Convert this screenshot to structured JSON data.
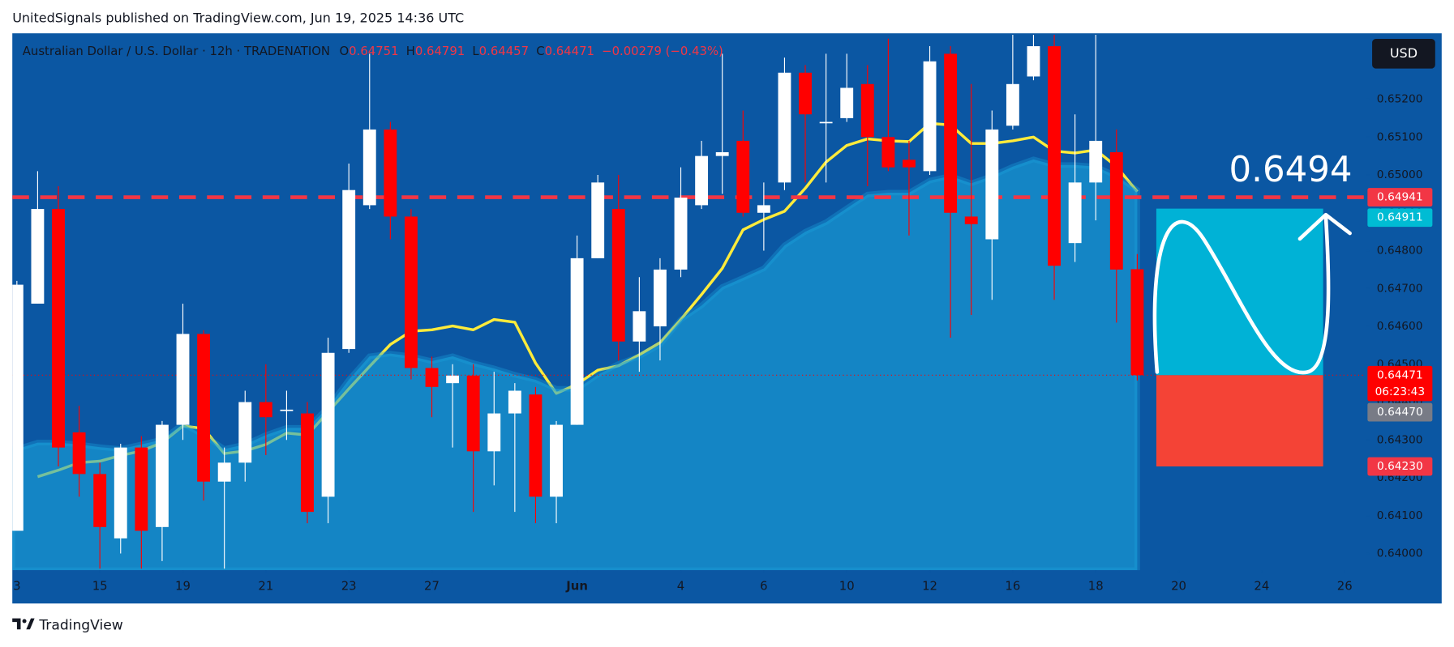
{
  "header": "UnitedSignals published on TradingView.com, Jun 19, 2025 14:36 UTC",
  "footer": "TradingView",
  "chart_data": {
    "type": "candlestick",
    "symbol": "Australian Dollar / U.S. Dollar · 12h · TRADENATION",
    "legend_keys": [
      "O",
      "H",
      "L",
      "C"
    ],
    "change": "−0.00279 (−0.43%)",
    "currency": "USD",
    "up_color": "#ffffff",
    "down_color": "#ff0000",
    "open": [
      0.6406,
      0.6466,
      0.6491,
      0.6432,
      0.6421,
      0.6404,
      0.6428,
      0.6407,
      0.6434,
      0.6458,
      0.6419,
      0.6424,
      0.644,
      0.6438,
      0.6437,
      0.6415,
      0.6454,
      0.6492,
      0.6512,
      0.6489,
      0.6449,
      0.6445,
      0.6447,
      0.6427,
      0.6437,
      0.6442,
      0.6415,
      0.6434,
      0.6478,
      0.6491,
      0.6456,
      0.646,
      0.6475,
      0.6492,
      0.6505,
      0.6509,
      0.649,
      0.6498,
      0.6527,
      0.6514,
      0.6515,
      0.6524,
      0.651,
      0.6504,
      0.6501,
      0.6532,
      0.6489,
      0.6483,
      0.6513,
      0.6526,
      0.6534,
      0.6482,
      0.6498,
      0.6506,
      0.64751
    ],
    "high": [
      0.6472,
      0.6501,
      0.6497,
      0.6439,
      0.6424,
      0.6429,
      0.6431,
      0.6435,
      0.6466,
      0.6459,
      0.6428,
      0.6443,
      0.645,
      0.6443,
      0.644,
      0.6457,
      0.6503,
      0.6532,
      0.6514,
      0.6491,
      0.6452,
      0.645,
      0.645,
      0.6448,
      0.6445,
      0.6444,
      0.6435,
      0.6484,
      0.65,
      0.65,
      0.6473,
      0.6478,
      0.6502,
      0.6509,
      0.6532,
      0.6517,
      0.6498,
      0.6531,
      0.6529,
      0.6532,
      0.6532,
      0.6529,
      0.6536,
      0.6509,
      0.6534,
      0.6534,
      0.6524,
      0.6517,
      0.6537,
      0.6537,
      0.6537,
      0.6516,
      0.6537,
      0.6512,
      0.64791
    ],
    "low": [
      0.6406,
      0.6466,
      0.6423,
      0.6415,
      0.6396,
      0.64,
      0.6396,
      0.6398,
      0.643,
      0.6414,
      0.6396,
      0.6419,
      0.6426,
      0.643,
      0.6408,
      0.6408,
      0.6453,
      0.6491,
      0.6483,
      0.6446,
      0.6436,
      0.6428,
      0.6411,
      0.6418,
      0.6411,
      0.6408,
      0.6408,
      0.6434,
      0.6478,
      0.6451,
      0.6448,
      0.6451,
      0.6473,
      0.6491,
      0.6495,
      0.6489,
      0.648,
      0.6496,
      0.6498,
      0.6498,
      0.6514,
      0.6497,
      0.6501,
      0.6484,
      0.65,
      0.6457,
      0.6463,
      0.6467,
      0.6512,
      0.6525,
      0.6467,
      0.6477,
      0.6488,
      0.6461,
      0.64457
    ],
    "close": [
      0.6471,
      0.6491,
      0.6428,
      0.6421,
      0.6407,
      0.6428,
      0.6406,
      0.6434,
      0.6458,
      0.6419,
      0.6424,
      0.644,
      0.6436,
      0.6438,
      0.6411,
      0.6453,
      0.6496,
      0.6512,
      0.6489,
      0.6449,
      0.6444,
      0.6447,
      0.6427,
      0.6437,
      0.6443,
      0.6415,
      0.6434,
      0.6478,
      0.6498,
      0.6456,
      0.6464,
      0.6475,
      0.6494,
      0.6505,
      0.6506,
      0.649,
      0.6492,
      0.6527,
      0.6516,
      0.6514,
      0.6523,
      0.651,
      0.6502,
      0.6502,
      0.653,
      0.649,
      0.6487,
      0.6512,
      0.6524,
      0.6534,
      0.6476,
      0.6498,
      0.6509,
      0.6475,
      0.64471
    ],
    "series": [
      {
        "kind": "line",
        "color": "#ffeb3b",
        "values": [
          null,
          0.64203,
          0.6422,
          0.6424,
          0.64244,
          0.64259,
          0.64271,
          0.64293,
          0.64337,
          0.6433,
          0.64264,
          0.64271,
          0.64288,
          0.64318,
          0.64313,
          0.64374,
          0.64435,
          0.64494,
          0.64552,
          0.64587,
          0.64591,
          0.64601,
          0.64591,
          0.64618,
          0.64611,
          0.64503,
          0.64423,
          0.64447,
          0.64484,
          0.64496,
          0.64525,
          0.64557,
          0.64618,
          0.64684,
          0.64753,
          0.64855,
          0.64882,
          0.64904,
          0.64965,
          0.65034,
          0.65078,
          0.65095,
          0.6509,
          0.65088,
          0.65136,
          0.65132,
          0.65083,
          0.65083,
          0.6509,
          0.651,
          0.65063,
          0.65058,
          0.65066,
          0.65022,
          0.64956
        ]
      },
      {
        "kind": "area",
        "color": "#1aa3dc",
        "values": [
          0.64276,
          0.64293,
          0.64293,
          0.64288,
          0.64281,
          0.64276,
          0.64288,
          0.64301,
          0.64342,
          0.64313,
          0.64276,
          0.64288,
          0.64313,
          0.64332,
          0.64332,
          0.64386,
          0.64459,
          0.64521,
          0.64528,
          0.64521,
          0.64508,
          0.64521,
          0.64503,
          0.64489,
          0.64472,
          0.64459,
          0.64435,
          0.64435,
          0.64472,
          0.64501,
          0.64521,
          0.64552,
          0.64618,
          0.64655,
          0.64704,
          0.64728,
          0.64753,
          0.64814,
          0.6485,
          0.64875,
          0.64912,
          0.64948,
          0.64953,
          0.64953,
          0.64985,
          0.64997,
          0.64978,
          0.64997,
          0.65022,
          0.65041,
          0.65026,
          0.65026,
          0.65022,
          0.64997,
          0.6496
        ]
      }
    ],
    "xlim": [
      -0.22,
      65.01
    ],
    "xticks": [
      {
        "value": 0,
        "label": "3"
      },
      {
        "value": 4,
        "label": "15"
      },
      {
        "value": 8,
        "label": "19"
      },
      {
        "value": 12,
        "label": "21"
      },
      {
        "value": 16,
        "label": "23"
      },
      {
        "value": 20,
        "label": "27"
      },
      {
        "value": 27,
        "label": "Jun"
      },
      {
        "value": 32,
        "label": "4"
      },
      {
        "value": 36,
        "label": "6"
      },
      {
        "value": 40,
        "label": "10"
      },
      {
        "value": 44,
        "label": "12"
      },
      {
        "value": 48,
        "label": "16"
      },
      {
        "value": 52,
        "label": "18"
      },
      {
        "value": 56,
        "label": "20"
      },
      {
        "value": 60,
        "label": "24"
      },
      {
        "value": 64,
        "label": "26"
      }
    ],
    "ylim": [
      0.63956,
      0.65374
    ],
    "yticks": [
      {
        "value": 0.64,
        "label": "0.64000"
      },
      {
        "value": 0.641,
        "label": "0.64100"
      },
      {
        "value": 0.642,
        "label": "0.64200"
      },
      {
        "value": 0.643,
        "label": "0.64300"
      },
      {
        "value": 0.644,
        "label": "0.64400"
      },
      {
        "value": 0.645,
        "label": "0.64500"
      },
      {
        "value": 0.646,
        "label": "0.64600"
      },
      {
        "value": 0.647,
        "label": "0.64700"
      },
      {
        "value": 0.648,
        "label": "0.64800"
      },
      {
        "value": 0.649,
        "label": "0.64900"
      },
      {
        "value": 0.65,
        "label": "0.65000"
      },
      {
        "value": 0.651,
        "label": "0.65100"
      },
      {
        "value": 0.652,
        "label": "0.65200"
      }
    ],
    "price_labels": [
      {
        "value": 0.64941,
        "label": "0.64941",
        "color": "#f23645",
        "line": "dashed"
      },
      {
        "value": 0.64911,
        "label": "0.64911",
        "color": "#00bcd4"
      },
      {
        "value": 0.64471,
        "label": "0.64471",
        "color": "#ff0000",
        "line": "dotted",
        "countdown": "06:23:43"
      },
      {
        "value": 0.6447,
        "label": "0.64470",
        "color": "#787b86"
      },
      {
        "value": 0.6423,
        "label": "0.64230",
        "color": "#f23645"
      }
    ],
    "position": {
      "start": 54.92,
      "end": 62.96,
      "target": 0.64911,
      "entry": 0.64471,
      "stop": 0.6423,
      "target_color": "#00b2d6",
      "stop_color": "#f44336"
    },
    "annotation": "0.6494"
  }
}
